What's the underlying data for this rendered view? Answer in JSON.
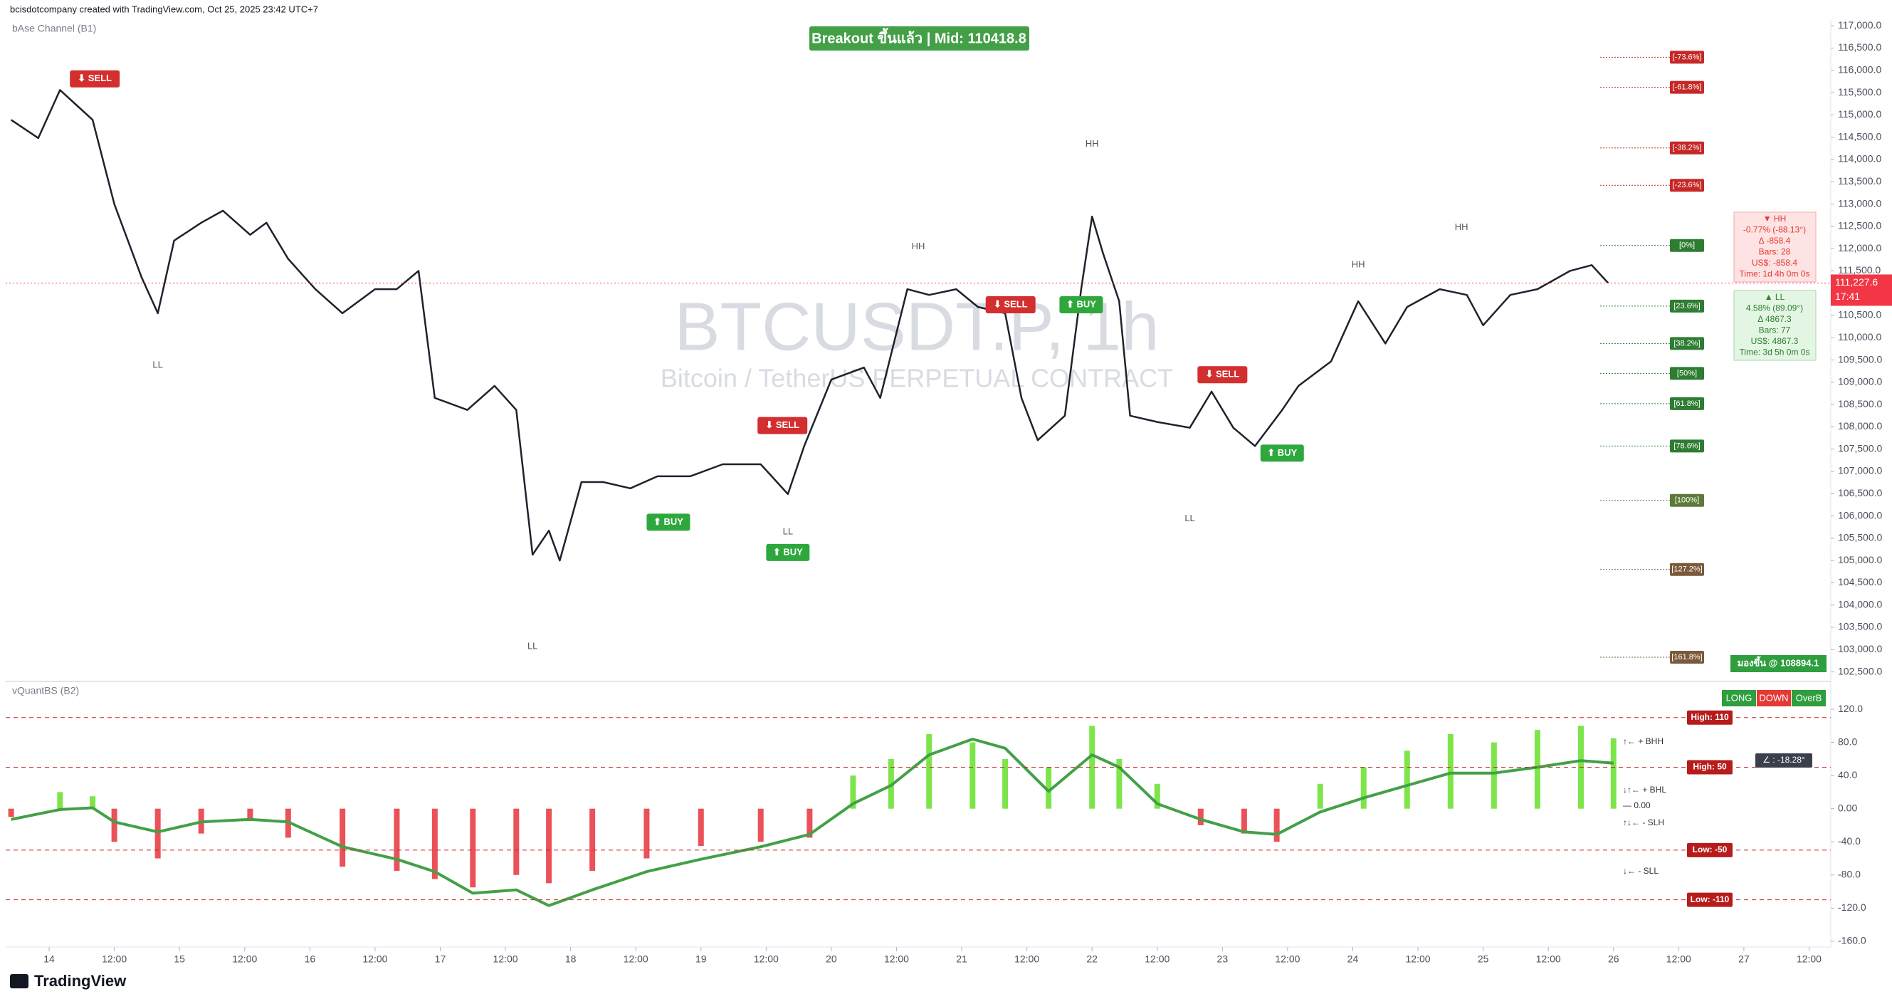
{
  "header": {
    "credit": "bcisdotcompany created with TradingView.com, Oct 25, 2025 23:42 UTC+7",
    "banner": "Breakout ขึ้นแล้ว | Mid: 110418.8",
    "watermark_symbol": "BTCUSDT.P, 1h",
    "watermark_name": "Bitcoin / TetherUS PERPETUAL CONTRACT",
    "logo": "TradingView"
  },
  "chart_data": [
    {
      "type": "line",
      "title": "bAse Channel (B1)",
      "color": "#1e222d",
      "xlim": [
        -8,
        328
      ],
      "ylim": [
        102350,
        117100
      ],
      "xticks": [
        {
          "value": 0,
          "label": "14"
        },
        {
          "value": 12,
          "label": "12:00"
        },
        {
          "value": 24,
          "label": "15"
        },
        {
          "value": 36,
          "label": "12:00"
        },
        {
          "value": 48,
          "label": "16"
        },
        {
          "value": 60,
          "label": "12:00"
        },
        {
          "value": 72,
          "label": "17"
        },
        {
          "value": 84,
          "label": "12:00"
        },
        {
          "value": 96,
          "label": "18"
        },
        {
          "value": 108,
          "label": "12:00"
        },
        {
          "value": 120,
          "label": "19"
        },
        {
          "value": 132,
          "label": "12:00"
        },
        {
          "value": 144,
          "label": "20"
        },
        {
          "value": 156,
          "label": "12:00"
        },
        {
          "value": 168,
          "label": "21"
        },
        {
          "value": 180,
          "label": "12:00"
        },
        {
          "value": 192,
          "label": "22"
        },
        {
          "value": 204,
          "label": "12:00"
        },
        {
          "value": 216,
          "label": "23"
        },
        {
          "value": 228,
          "label": "12:00"
        },
        {
          "value": 240,
          "label": "24"
        },
        {
          "value": 252,
          "label": "12:00"
        },
        {
          "value": 264,
          "label": "25"
        },
        {
          "value": 276,
          "label": "12:00"
        },
        {
          "value": 288,
          "label": "26"
        },
        {
          "value": 300,
          "label": "12:00"
        },
        {
          "value": 312,
          "label": "27"
        },
        {
          "value": 324,
          "label": "12:00"
        }
      ],
      "yticks": [
        {
          "value": 117000,
          "label": "117,000.0"
        },
        {
          "value": 116500,
          "label": "116,500.0"
        },
        {
          "value": 116000,
          "label": "116,000.0"
        },
        {
          "value": 115500,
          "label": "115,500.0"
        },
        {
          "value": 115000,
          "label": "115,000.0"
        },
        {
          "value": 114500,
          "label": "114,500.0"
        },
        {
          "value": 114000,
          "label": "114,000.0"
        },
        {
          "value": 113500,
          "label": "113,500.0"
        },
        {
          "value": 113000,
          "label": "113,000.0"
        },
        {
          "value": 112500,
          "label": "112,500.0"
        },
        {
          "value": 112000,
          "label": "112,000.0"
        },
        {
          "value": 111500,
          "label": "111,500.0"
        },
        {
          "value": 111000,
          "label": "111,000.0"
        },
        {
          "value": 110500,
          "label": "110,500.0"
        },
        {
          "value": 110000,
          "label": "110,000.0"
        },
        {
          "value": 109500,
          "label": "109,500.0"
        },
        {
          "value": 109000,
          "label": "109,000.0"
        },
        {
          "value": 108500,
          "label": "108,500.0"
        },
        {
          "value": 108000,
          "label": "108,000.0"
        },
        {
          "value": 107500,
          "label": "107,500.0"
        },
        {
          "value": 107000,
          "label": "107,000.0"
        },
        {
          "value": 106500,
          "label": "106,500.0"
        },
        {
          "value": 106000,
          "label": "106,000.0"
        },
        {
          "value": 105500,
          "label": "105,500.0"
        },
        {
          "value": 105000,
          "label": "105,000.0"
        },
        {
          "value": 104500,
          "label": "104,500.0"
        },
        {
          "value": 104000,
          "label": "104,000.0"
        },
        {
          "value": 103500,
          "label": "103,500.0"
        },
        {
          "value": 103000,
          "label": "103,000.0"
        },
        {
          "value": 102500,
          "label": "102,500.0"
        }
      ],
      "x": [
        -7,
        -2,
        2,
        8,
        12,
        17,
        20,
        23,
        28,
        32,
        37,
        40,
        44,
        49,
        54,
        60,
        64,
        68,
        71,
        77,
        82,
        86,
        89,
        92,
        94,
        98,
        102,
        107,
        112,
        118,
        124,
        131,
        136,
        139,
        144,
        150,
        153,
        158,
        162,
        167,
        171,
        176,
        179,
        182,
        187,
        190,
        192,
        194,
        197,
        199,
        204,
        210,
        214,
        218,
        222,
        227,
        230,
        236,
        241,
        246,
        250,
        256,
        261,
        264,
        269,
        274,
        280,
        284,
        287
      ],
      "values": [
        114890,
        114480,
        115560,
        114890,
        113000,
        111360,
        110550,
        112180,
        112580,
        112850,
        112310,
        112580,
        111770,
        111090,
        110550,
        111090,
        111090,
        111500,
        108650,
        108380,
        108920,
        108380,
        105130,
        105670,
        105000,
        106760,
        106760,
        106620,
        106890,
        106890,
        107160,
        107160,
        106490,
        107570,
        109060,
        109330,
        108650,
        111090,
        110960,
        111090,
        110690,
        110550,
        108650,
        107700,
        108250,
        111090,
        112720,
        111900,
        110820,
        108250,
        108110,
        107980,
        108790,
        107980,
        107570,
        108380,
        108920,
        109470,
        110820,
        109870,
        110690,
        111090,
        110960,
        110280,
        110960,
        111090,
        111500,
        111630,
        111228
      ],
      "last_price": {
        "value": 111227.6,
        "label": "111,227.6"
      },
      "last_time": "17:41",
      "last_color": "#f23645",
      "annotations": [
        {
          "text": "⬇ SELL",
          "x": 8.4,
          "y": 115810,
          "color": "#d32f2f"
        },
        {
          "text": "⬇ SELL",
          "x": 135,
          "y": 108030,
          "color": "#d32f2f"
        },
        {
          "text": "⬇ SELL",
          "x": 177,
          "y": 110740,
          "color": "#d32f2f"
        },
        {
          "text": "⬇ SELL",
          "x": 216,
          "y": 109170,
          "color": "#d32f2f"
        },
        {
          "text": "⬆ BUY",
          "x": 114,
          "y": 105860,
          "color": "#2ea83c"
        },
        {
          "text": "⬆ BUY",
          "x": 136,
          "y": 105180,
          "color": "#2ea83c"
        },
        {
          "text": "⬆ BUY",
          "x": 190,
          "y": 110740,
          "color": "#2ea83c"
        },
        {
          "text": "⬆ BUY",
          "x": 227,
          "y": 107410,
          "color": "#2ea83c"
        },
        {
          "text": "HH",
          "x": 192,
          "y": 114340
        },
        {
          "text": "HH",
          "x": 160,
          "y": 112040
        },
        {
          "text": "HH",
          "x": 241,
          "y": 111630
        },
        {
          "text": "HH",
          "x": 260,
          "y": 112470
        },
        {
          "text": "LL",
          "x": 20,
          "y": 109380
        },
        {
          "text": "LL",
          "x": 89,
          "y": 103070
        },
        {
          "text": "LL",
          "x": 136,
          "y": 105640
        },
        {
          "text": "LL",
          "x": 210,
          "y": 105940
        }
      ],
      "fib_levels": [
        {
          "label": "[-73.6%]",
          "price": 116295,
          "color": "#c62828"
        },
        {
          "label": "[-61.8%]",
          "price": 115620,
          "color": "#c62828"
        },
        {
          "label": "[-38.2%]",
          "price": 114260,
          "color": "#c62828"
        },
        {
          "label": "[-23.6%]",
          "price": 113420,
          "color": "#c62828"
        },
        {
          "label": "[0%]",
          "price": 112070,
          "color": "#2e7d32"
        },
        {
          "label": "[23.6%]",
          "price": 110710,
          "color": "#2e7d32"
        },
        {
          "label": "[38.2%]",
          "price": 109870,
          "color": "#2e7d32"
        },
        {
          "label": "[50%]",
          "price": 109200,
          "color": "#2e7d32"
        },
        {
          "label": "[61.8%]",
          "price": 108520,
          "color": "#2e7d32"
        },
        {
          "label": "[78.6%]",
          "price": 107570,
          "color": "#2e7d32"
        },
        {
          "label": "[100%]",
          "price": 106350,
          "color": "#5d7a3a"
        },
        {
          "label": "[127.2%]",
          "price": 104800,
          "color": "#7a5a3a"
        },
        {
          "label": "[161.8%]",
          "price": 102830,
          "color": "#7a5a3a"
        }
      ],
      "hh_box": [
        "▼ HH",
        "-0.77% (-88.13°)",
        "Δ -858.4",
        "Bars: 28",
        "US$: -858.4",
        "Time: 1d 4h 0m 0s"
      ],
      "ll_box": [
        "▲ LL",
        "4.58% (89.09°)",
        "Δ 4867.3",
        "Bars: 77",
        "US$: 4867.3",
        "Time: 3d 5h 0m 0s"
      ],
      "outlook": "มองขึ้น @ 108894.1"
    },
    {
      "type": "line",
      "title": "vQuantBS (B2)",
      "color": "#43a047",
      "xlim": [
        -8,
        328
      ],
      "ylim": [
        -167,
        151
      ],
      "yticks": [
        {
          "value": 120,
          "label": "120.0"
        },
        {
          "value": 80,
          "label": "80.0"
        },
        {
          "value": 40,
          "label": "40.0"
        },
        {
          "value": 0,
          "label": "0.00"
        },
        {
          "value": -40,
          "label": "-40.0"
        },
        {
          "value": -80,
          "label": "-80.0"
        },
        {
          "value": -120,
          "label": "-120.0"
        },
        {
          "value": -160,
          "label": "-160.0"
        }
      ],
      "x": [
        -7,
        2,
        8,
        12,
        20,
        28,
        37,
        44,
        54,
        64,
        71,
        78,
        86,
        92,
        100,
        110,
        120,
        131,
        140,
        148,
        155,
        162,
        170,
        176,
        184,
        192,
        197,
        204,
        212,
        220,
        226,
        234,
        242,
        250,
        258,
        266,
        274,
        282,
        288
      ],
      "values": [
        -13,
        -1,
        1,
        -16,
        -28,
        -16,
        -13,
        -16,
        -46,
        -61,
        -76,
        -102,
        -98,
        -117,
        -98,
        -76,
        -61,
        -46,
        -31,
        6,
        28,
        65,
        84,
        73,
        21,
        65,
        50,
        6,
        -13,
        -28,
        -31,
        -4,
        13,
        28,
        43,
        43,
        50,
        58,
        55
      ],
      "histogram": [
        -10,
        20,
        15,
        -40,
        -60,
        -30,
        -15,
        -35,
        -70,
        -75,
        -85,
        -95,
        -80,
        -90,
        -75,
        -60,
        -45,
        -40,
        -35,
        40,
        60,
        90,
        80,
        60,
        50,
        100,
        60,
        30,
        -20,
        -30,
        -40,
        30,
        50,
        70,
        90,
        80,
        95,
        100,
        85
      ],
      "positive_color": "#66e02a",
      "negative_color": "#e8323c",
      "levels": [
        {
          "value": 110,
          "label": "High: 110"
        },
        {
          "value": 50,
          "label": "High: 50"
        },
        {
          "value": -50,
          "label": "Low: -50"
        },
        {
          "value": -110,
          "label": "Low: -110"
        }
      ],
      "buttons": [
        "LONG",
        "DOWN",
        "OverB"
      ],
      "angle": "∠ : -18.28°",
      "legend": [
        "↑← + BHH",
        "↓↑← + BHL",
        "— 0.00",
        "↑↓← - SLH",
        "↓← - SLL"
      ]
    }
  ]
}
